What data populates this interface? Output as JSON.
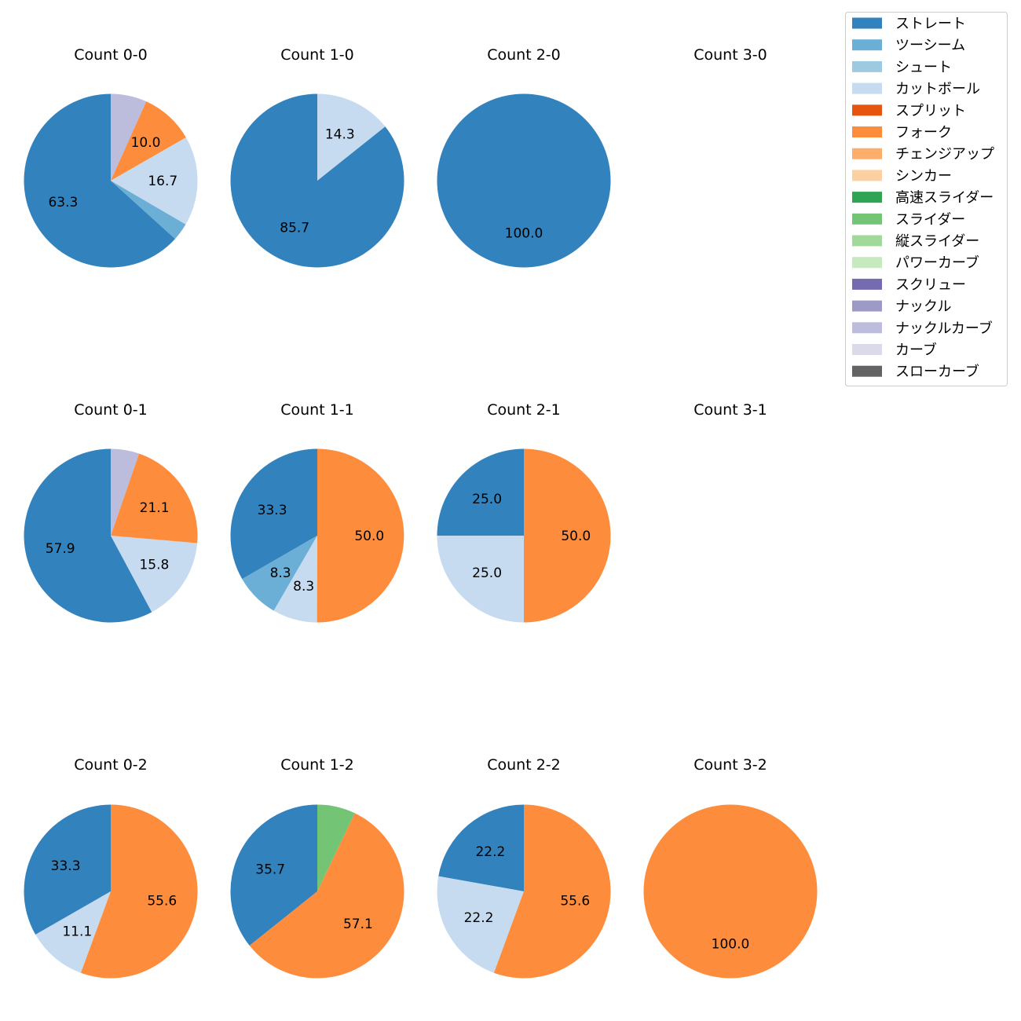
{
  "chart_data": {
    "type": "pie",
    "legend_position": "top-right",
    "legend": [
      {
        "label": "ストレート",
        "color": "#3182bd"
      },
      {
        "label": "ツーシーム",
        "color": "#6baed6"
      },
      {
        "label": "シュート",
        "color": "#9ecae1"
      },
      {
        "label": "カットボール",
        "color": "#c6dbef"
      },
      {
        "label": "スプリット",
        "color": "#e6550d"
      },
      {
        "label": "フォーク",
        "color": "#fd8d3c"
      },
      {
        "label": "チェンジアップ",
        "color": "#fdae6b"
      },
      {
        "label": "シンカー",
        "color": "#fdd0a2"
      },
      {
        "label": "高速スライダー",
        "color": "#31a354"
      },
      {
        "label": "スライダー",
        "color": "#74c476"
      },
      {
        "label": "縦スライダー",
        "color": "#a1d99b"
      },
      {
        "label": "パワーカーブ",
        "color": "#c7e9c0"
      },
      {
        "label": "スクリュー",
        "color": "#756bb1"
      },
      {
        "label": "ナックル",
        "color": "#9e9ac8"
      },
      {
        "label": "ナックルカーブ",
        "color": "#bcbddc"
      },
      {
        "label": "カーブ",
        "color": "#dadaeb"
      },
      {
        "label": "スローカーブ",
        "color": "#636363"
      }
    ],
    "pies": [
      {
        "title": "Count 0-0",
        "slices": [
          {
            "pitch": "ストレート",
            "value": 63.3,
            "label": "63.3"
          },
          {
            "pitch": "ツーシーム",
            "value": 3.3,
            "label": ""
          },
          {
            "pitch": "カットボール",
            "value": 16.7,
            "label": "16.7"
          },
          {
            "pitch": "フォーク",
            "value": 10.0,
            "label": "10.0"
          },
          {
            "pitch": "ナックルカーブ",
            "value": 6.7,
            "label": ""
          }
        ]
      },
      {
        "title": "Count 1-0",
        "slices": [
          {
            "pitch": "ストレート",
            "value": 85.7,
            "label": "85.7"
          },
          {
            "pitch": "カットボール",
            "value": 14.3,
            "label": "14.3"
          }
        ]
      },
      {
        "title": "Count 2-0",
        "slices": [
          {
            "pitch": "ストレート",
            "value": 100.0,
            "label": "100.0"
          }
        ]
      },
      {
        "title": "Count 3-0",
        "slices": []
      },
      {
        "title": "Count 0-1",
        "slices": [
          {
            "pitch": "ストレート",
            "value": 57.9,
            "label": "57.9"
          },
          {
            "pitch": "カットボール",
            "value": 15.8,
            "label": "15.8"
          },
          {
            "pitch": "フォーク",
            "value": 21.1,
            "label": "21.1"
          },
          {
            "pitch": "ナックルカーブ",
            "value": 5.3,
            "label": ""
          }
        ]
      },
      {
        "title": "Count 1-1",
        "slices": [
          {
            "pitch": "ストレート",
            "value": 33.3,
            "label": "33.3"
          },
          {
            "pitch": "ツーシーム",
            "value": 8.3,
            "label": "8.3"
          },
          {
            "pitch": "カットボール",
            "value": 8.3,
            "label": "8.3"
          },
          {
            "pitch": "フォーク",
            "value": 50.0,
            "label": "50.0"
          }
        ]
      },
      {
        "title": "Count 2-1",
        "slices": [
          {
            "pitch": "ストレート",
            "value": 25.0,
            "label": "25.0"
          },
          {
            "pitch": "カットボール",
            "value": 25.0,
            "label": "25.0"
          },
          {
            "pitch": "フォーク",
            "value": 50.0,
            "label": "50.0"
          }
        ]
      },
      {
        "title": "Count 3-1",
        "slices": []
      },
      {
        "title": "Count 0-2",
        "slices": [
          {
            "pitch": "ストレート",
            "value": 33.3,
            "label": "33.3"
          },
          {
            "pitch": "カットボール",
            "value": 11.1,
            "label": "11.1"
          },
          {
            "pitch": "フォーク",
            "value": 55.6,
            "label": "55.6"
          }
        ]
      },
      {
        "title": "Count 1-2",
        "slices": [
          {
            "pitch": "ストレート",
            "value": 35.7,
            "label": "35.7"
          },
          {
            "pitch": "フォーク",
            "value": 57.1,
            "label": "57.1"
          },
          {
            "pitch": "スライダー",
            "value": 7.1,
            "label": ""
          }
        ]
      },
      {
        "title": "Count 2-2",
        "slices": [
          {
            "pitch": "ストレート",
            "value": 22.2,
            "label": "22.2"
          },
          {
            "pitch": "カットボール",
            "value": 22.2,
            "label": "22.2"
          },
          {
            "pitch": "フォーク",
            "value": 55.6,
            "label": "55.6"
          }
        ]
      },
      {
        "title": "Count 3-2",
        "slices": [
          {
            "pitch": "フォーク",
            "value": 100.0,
            "label": "100.0"
          }
        ]
      }
    ]
  }
}
